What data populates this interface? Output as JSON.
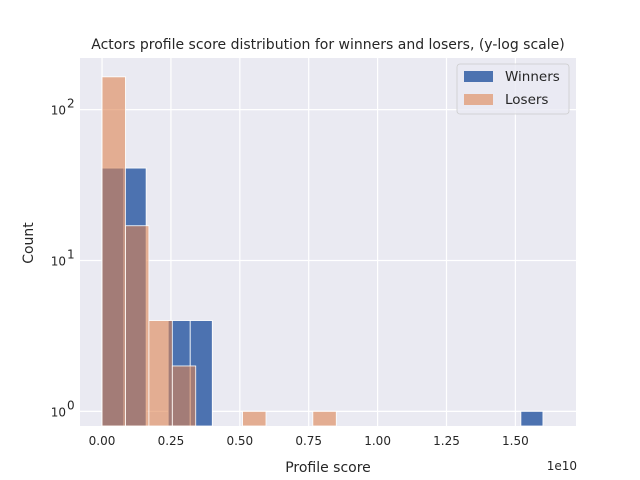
{
  "chart_data": {
    "type": "bar",
    "title": "Actors profile score distribution for winners and losers, (y-log scale)",
    "xlabel": "Profile score",
    "ylabel": "Count",
    "x_offset_text": "1e10",
    "x_ticks": [
      "0.00",
      "0.25",
      "0.50",
      "0.75",
      "1.00",
      "1.25",
      "1.50"
    ],
    "y_scale": "log",
    "ylim": [
      0.8,
      220
    ],
    "xlim": [
      -0.08,
      1.72
    ],
    "grid": true,
    "legend_position": "top-right",
    "colors": {
      "background": "#eaeaf2",
      "grid": "#ffffff",
      "winners": "#4c72b0",
      "losers": "#dd8452"
    },
    "series": [
      {
        "name": "Winners",
        "bin_edges": [
          0.0,
          0.08,
          0.16,
          0.24,
          0.32,
          0.4,
          0.48,
          0.56,
          0.64,
          0.72,
          0.8,
          0.88,
          0.96,
          1.04,
          1.12,
          1.2,
          1.28,
          1.36,
          1.44,
          1.52,
          1.6,
          1.68
        ],
        "counts": [
          41,
          41,
          0,
          4,
          4,
          0,
          0,
          0,
          0,
          0,
          0,
          0,
          0,
          0,
          0,
          0,
          0,
          0,
          0,
          1,
          0
        ]
      },
      {
        "name": "Losers",
        "bin_edges": [
          0.0,
          0.085,
          0.17,
          0.255,
          0.34,
          0.425,
          0.51,
          0.595,
          0.68,
          0.765,
          0.85,
          0.935
        ],
        "counts": [
          165,
          17,
          4,
          2,
          0,
          0,
          1,
          0,
          0,
          1,
          0
        ]
      }
    ]
  }
}
